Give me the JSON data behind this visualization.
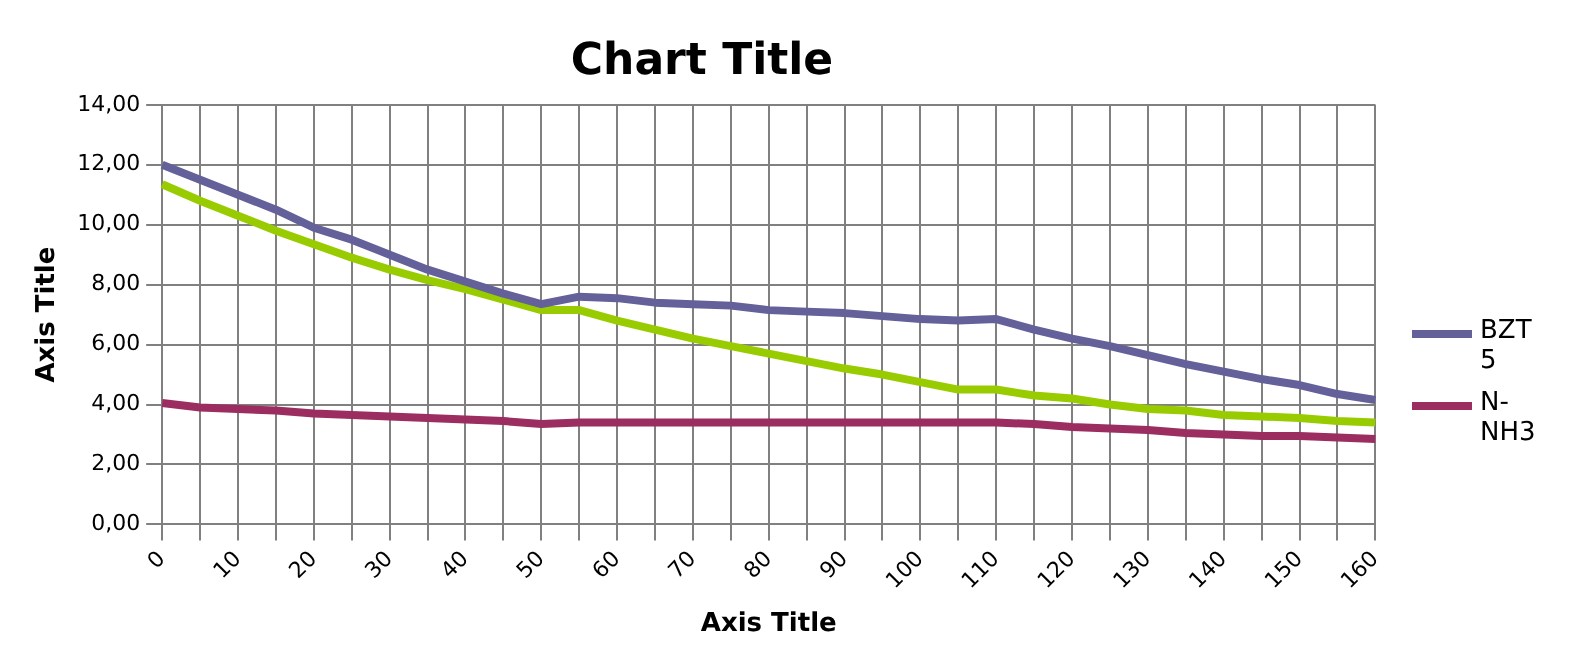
{
  "chart_data": {
    "type": "line",
    "title": "Chart Title",
    "xlabel": "Axis Title",
    "ylabel": "Axis Title",
    "categories": [
      "0",
      null,
      "10",
      null,
      "20",
      null,
      "30",
      null,
      "40",
      null,
      "50",
      null,
      "60",
      null,
      "70",
      null,
      "80",
      null,
      "90",
      null,
      "100",
      null,
      "110",
      null,
      "120",
      null,
      "130",
      null,
      "140",
      null,
      "150",
      null,
      "160"
    ],
    "series": [
      {
        "name": "BZT 5",
        "color": "#64609a",
        "values": [
          12.0,
          11.5,
          11.0,
          10.5,
          9.9,
          9.5,
          9.0,
          8.5,
          8.1,
          7.7,
          7.35,
          7.6,
          7.55,
          7.4,
          7.35,
          7.3,
          7.15,
          7.1,
          7.05,
          6.95,
          6.85,
          6.8,
          6.85,
          6.5,
          6.2,
          5.95,
          5.65,
          5.35,
          5.1,
          4.85,
          4.65,
          4.35,
          4.15
        ]
      },
      {
        "name": "N-NH3",
        "color": "#9b2d61",
        "values": [
          4.05,
          3.9,
          3.85,
          3.8,
          3.7,
          3.65,
          3.6,
          3.55,
          3.5,
          3.45,
          3.35,
          3.4,
          3.4,
          3.4,
          3.4,
          3.4,
          3.4,
          3.4,
          3.4,
          3.4,
          3.4,
          3.4,
          3.4,
          3.35,
          3.25,
          3.2,
          3.15,
          3.05,
          3.0,
          2.95,
          2.95,
          2.9,
          2.85
        ]
      },
      {
        "color": "#99cc00",
        "values": [
          11.35,
          10.8,
          10.3,
          9.8,
          9.35,
          8.9,
          8.5,
          8.15,
          7.85,
          7.5,
          7.15,
          7.15,
          6.8,
          6.5,
          6.2,
          5.95,
          5.7,
          5.45,
          5.2,
          5.0,
          4.75,
          4.5,
          4.5,
          4.3,
          4.2,
          4.0,
          3.85,
          3.8,
          3.65,
          3.6,
          3.55,
          3.45,
          3.4
        ]
      }
    ],
    "ylim": [
      0,
      14
    ],
    "yticks": [
      {
        "value": 0,
        "label": "0,00"
      },
      {
        "value": 2,
        "label": "2,00"
      },
      {
        "value": 4,
        "label": "4,00"
      },
      {
        "value": 6,
        "label": "6,00"
      },
      {
        "value": 8,
        "label": "8,00"
      },
      {
        "value": 10,
        "label": "10,00"
      },
      {
        "value": 12,
        "label": "12,00"
      },
      {
        "value": 14,
        "label": "14,00"
      }
    ],
    "grid": true,
    "legend": "right",
    "marker": "none",
    "line_style": "solid"
  }
}
